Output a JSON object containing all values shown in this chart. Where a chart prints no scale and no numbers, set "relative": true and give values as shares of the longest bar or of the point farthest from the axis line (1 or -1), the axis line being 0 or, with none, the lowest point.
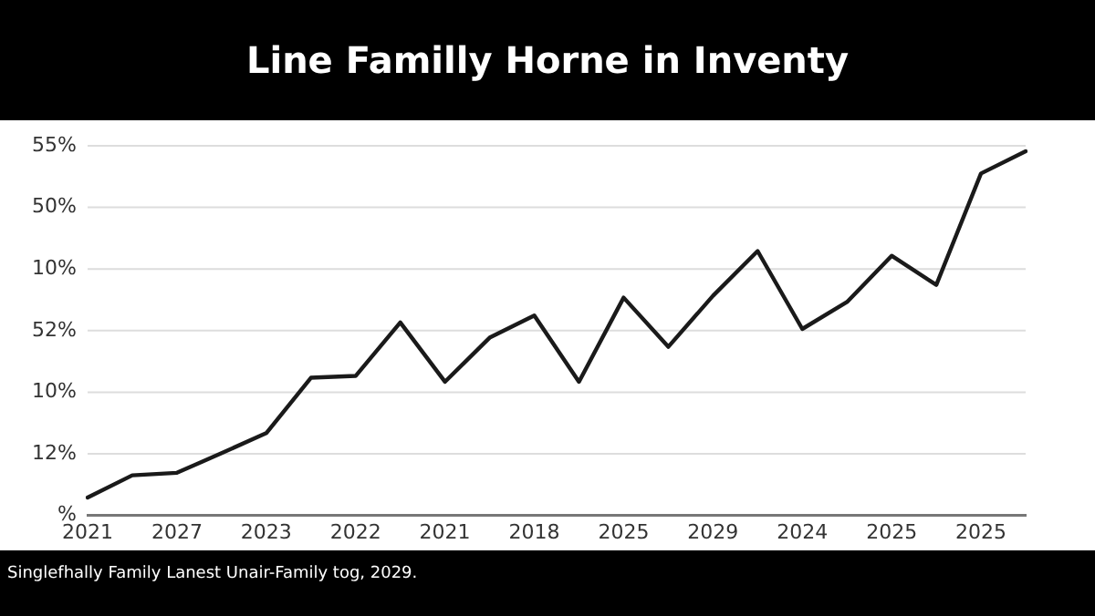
{
  "chart_data": {
    "type": "line",
    "title": "Line Familly Horne in Inventy",
    "relative": true,
    "categories": [
      "2021",
      null,
      "2027",
      null,
      "2023",
      null,
      "2022",
      null,
      "2021",
      null,
      "2018",
      null,
      "2025",
      null,
      "2029",
      null,
      "2024",
      null,
      "2025",
      null,
      "2025",
      null
    ],
    "series": [
      {
        "color": "#1a1a1a",
        "values": [
          0.049,
          0.11,
          0.117,
          0.171,
          0.226,
          0.378,
          0.383,
          0.53,
          0.367,
          0.488,
          0.549,
          0.367,
          0.598,
          0.463,
          0.603,
          0.726,
          0.512,
          0.586,
          0.713,
          0.633,
          0.939,
          1
        ]
      }
    ],
    "grid": "y",
    "marker": "none",
    "line_style": "solid",
    "legend": false,
    "annotations": [
      "55%",
      "50%",
      "10%",
      "52%",
      "10%",
      "12%",
      "%",
      "Singlefhally Family Lanest Unair-Family tog, 2029."
    ]
  }
}
